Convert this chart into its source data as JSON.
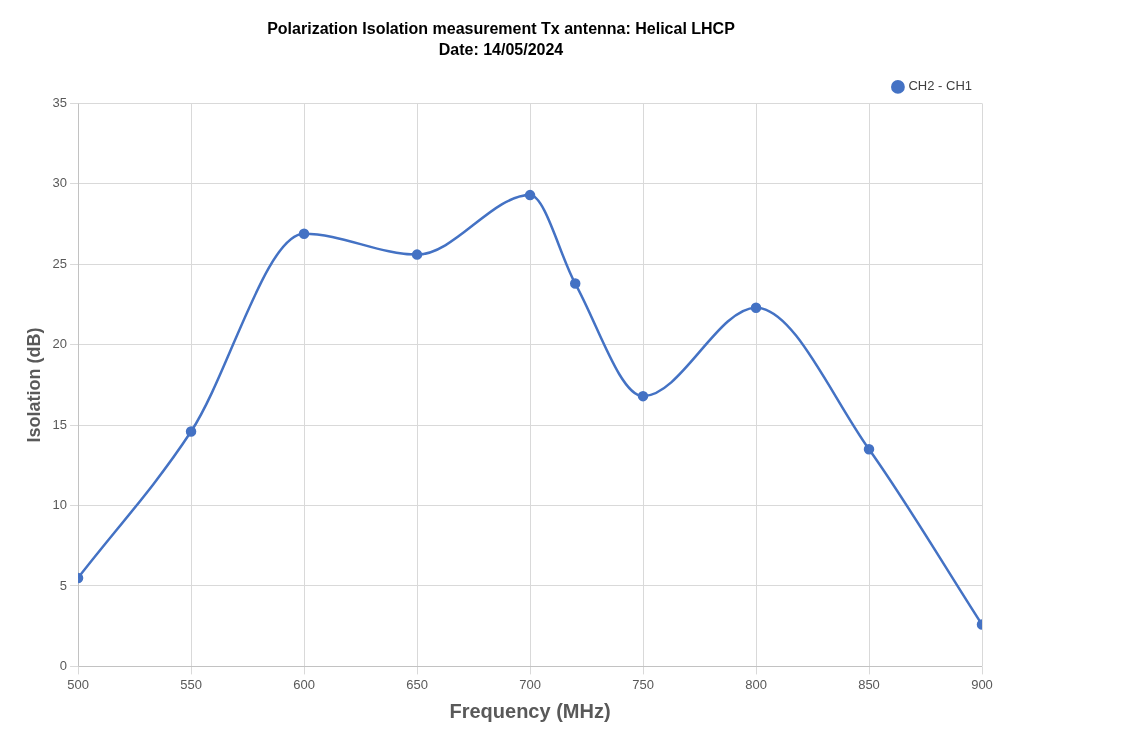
{
  "chart_data": {
    "type": "line",
    "title": "Polarization Isolation measurement Tx antenna: Helical LHCP",
    "subtitle": "Date: 14/05/2024",
    "xlabel": "Frequency (MHz)",
    "ylabel": "Isolation (dB)",
    "x": [
      500,
      550,
      600,
      650,
      700,
      720,
      750,
      800,
      850,
      900
    ],
    "series": [
      {
        "name": "CH2 - CH1",
        "color": "#4472c4",
        "values": [
          5.5,
          14.6,
          26.9,
          25.6,
          29.3,
          23.8,
          16.8,
          22.3,
          13.5,
          2.6
        ]
      }
    ],
    "xlim": [
      500,
      900
    ],
    "xticks": [
      500,
      550,
      600,
      650,
      700,
      750,
      800,
      850,
      900
    ],
    "ylim": [
      0,
      35
    ],
    "yticks": [
      0,
      5,
      10,
      15,
      20,
      25,
      30,
      35
    ],
    "grid": true,
    "legend": "top right",
    "marker": "circle",
    "line_style": "solid"
  }
}
